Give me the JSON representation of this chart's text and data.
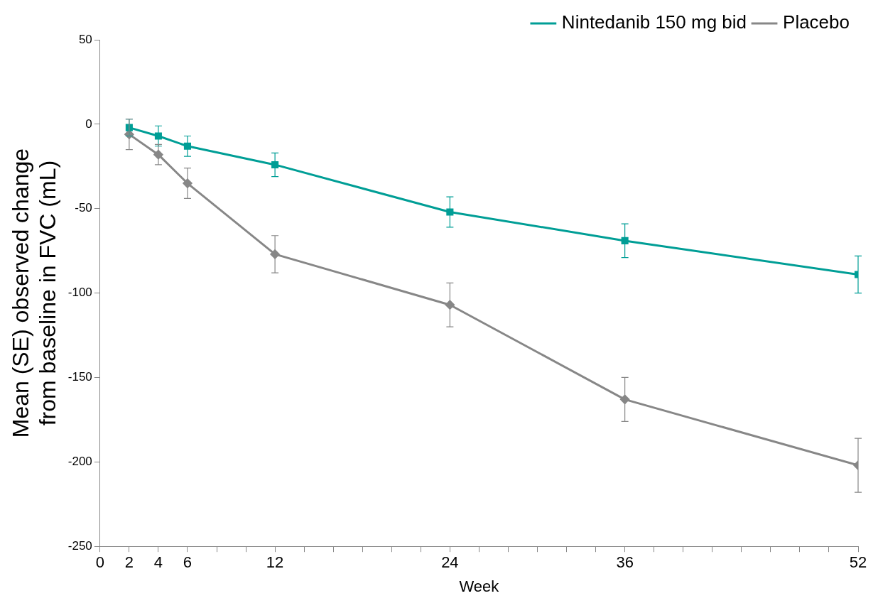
{
  "chart_data": {
    "type": "line",
    "xlabel": "Week",
    "ylabel": "Mean (SE) observed change\nfrom baseline in FVC (mL)",
    "xlim": [
      0,
      52
    ],
    "xticks": [
      0,
      2,
      4,
      6,
      {
        "value": 8,
        "label": null
      },
      {
        "value": 10,
        "label": null
      },
      12,
      {
        "value": 14,
        "label": null
      },
      {
        "value": 16,
        "label": null
      },
      {
        "value": 18,
        "label": null
      },
      {
        "value": 20,
        "label": null
      },
      {
        "value": 22,
        "label": null
      },
      24,
      {
        "value": 26,
        "label": null
      },
      {
        "value": 28,
        "label": null
      },
      {
        "value": 30,
        "label": null
      },
      {
        "value": 32,
        "label": null
      },
      {
        "value": 34,
        "label": null
      },
      36,
      {
        "value": 38,
        "label": null
      },
      {
        "value": 40,
        "label": null
      },
      {
        "value": 42,
        "label": null
      },
      {
        "value": 44,
        "label": null
      },
      {
        "value": 46,
        "label": null
      },
      {
        "value": 48,
        "label": null
      },
      {
        "value": 50,
        "label": null
      },
      52
    ],
    "ylim": [
      -250,
      50
    ],
    "yticks": [
      -250,
      -200,
      -150,
      -100,
      -50,
      0,
      50
    ],
    "grid": false,
    "legend": "top right",
    "series": [
      {
        "name": "Nintedanib 150 mg bid",
        "color": "#009e96",
        "marker": "square",
        "x": [
          2,
          4,
          6,
          12,
          24,
          36,
          52
        ],
        "values": [
          -2,
          -7,
          -13,
          -24,
          -52,
          -69,
          -89
        ],
        "errors": [
          5,
          6,
          6,
          7,
          9,
          10,
          11
        ]
      },
      {
        "name": "Placebo",
        "color": "#878787",
        "marker": "diamond",
        "x": [
          2,
          4,
          6,
          12,
          24,
          36,
          52
        ],
        "values": [
          -6,
          -18,
          -35,
          -77,
          -107,
          -163,
          -202
        ],
        "errors": [
          9,
          6,
          9,
          11,
          13,
          13,
          16
        ]
      }
    ]
  }
}
